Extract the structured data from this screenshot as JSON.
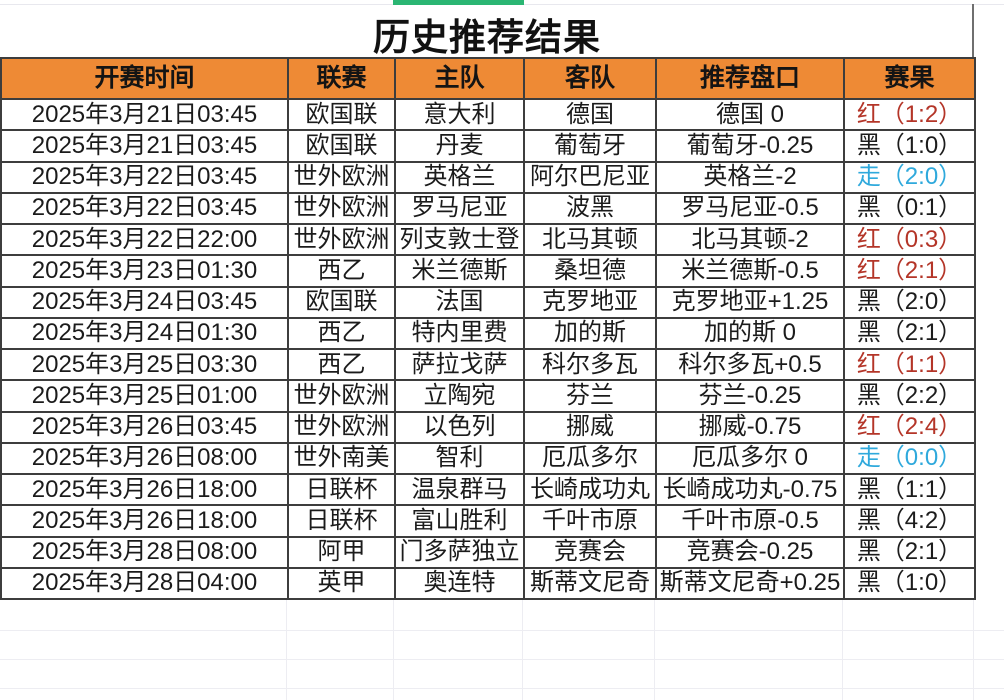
{
  "page": {
    "title": "历史推荐结果",
    "accent_bar_color": "#2bb673"
  },
  "table": {
    "header_bg": "#ee8a35",
    "result_colors": {
      "red": "#b43528",
      "black": "#1c1c1c",
      "draw": "#2fa9dc"
    },
    "columns": [
      {
        "key": "time",
        "label": "开赛时间"
      },
      {
        "key": "league",
        "label": "联赛"
      },
      {
        "key": "home",
        "label": "主队"
      },
      {
        "key": "away",
        "label": "客队"
      },
      {
        "key": "handicap",
        "label": "推荐盘口"
      },
      {
        "key": "result",
        "label": "赛果"
      }
    ],
    "rows": [
      {
        "time": "2025年3月21日03:45",
        "league": "欧国联",
        "home": "意大利",
        "away": "德国",
        "handicap": "德国 0",
        "result": "红（1:2）",
        "result_type": "red"
      },
      {
        "time": "2025年3月21日03:45",
        "league": "欧国联",
        "home": "丹麦",
        "away": "葡萄牙",
        "handicap": "葡萄牙-0.25",
        "result": "黑（1:0）",
        "result_type": "black"
      },
      {
        "time": "2025年3月22日03:45",
        "league": "世外欧洲",
        "home": "英格兰",
        "away": "阿尔巴尼亚",
        "handicap": "英格兰-2",
        "result": "走（2:0）",
        "result_type": "draw"
      },
      {
        "time": "2025年3月22日03:45",
        "league": "世外欧洲",
        "home": "罗马尼亚",
        "away": "波黑",
        "handicap": "罗马尼亚-0.5",
        "result": "黑（0:1）",
        "result_type": "black"
      },
      {
        "time": "2025年3月22日22:00",
        "league": "世外欧洲",
        "home": "列支敦士登",
        "away": "北马其顿",
        "handicap": "北马其顿-2",
        "result": "红（0:3）",
        "result_type": "red"
      },
      {
        "time": "2025年3月23日01:30",
        "league": "西乙",
        "home": "米兰德斯",
        "away": "桑坦德",
        "handicap": "米兰德斯-0.5",
        "result": "红（2:1）",
        "result_type": "red"
      },
      {
        "time": "2025年3月24日03:45",
        "league": "欧国联",
        "home": "法国",
        "away": "克罗地亚",
        "handicap": "克罗地亚+1.25",
        "result": "黑（2:0）",
        "result_type": "black"
      },
      {
        "time": "2025年3月24日01:30",
        "league": "西乙",
        "home": "特内里费",
        "away": "加的斯",
        "handicap": "加的斯 0",
        "result": "黑（2:1）",
        "result_type": "black"
      },
      {
        "time": "2025年3月25日03:30",
        "league": "西乙",
        "home": "萨拉戈萨",
        "away": "科尔多瓦",
        "handicap": "科尔多瓦+0.5",
        "result": "红（1:1）",
        "result_type": "red"
      },
      {
        "time": "2025年3月25日01:00",
        "league": "世外欧洲",
        "home": "立陶宛",
        "away": "芬兰",
        "handicap": "芬兰-0.25",
        "result": "黑（2:2）",
        "result_type": "black"
      },
      {
        "time": "2025年3月26日03:45",
        "league": "世外欧洲",
        "home": "以色列",
        "away": "挪威",
        "handicap": "挪威-0.75",
        "result": "红（2:4）",
        "result_type": "red"
      },
      {
        "time": "2025年3月26日08:00",
        "league": "世外南美",
        "home": "智利",
        "away": "厄瓜多尔",
        "handicap": "厄瓜多尔 0",
        "result": "走（0:0）",
        "result_type": "draw"
      },
      {
        "time": "2025年3月26日18:00",
        "league": "日联杯",
        "home": "温泉群马",
        "away": "长崎成功丸",
        "handicap": "长崎成功丸-0.75",
        "result": "黑（1:1）",
        "result_type": "black"
      },
      {
        "time": "2025年3月26日18:00",
        "league": "日联杯",
        "home": "富山胜利",
        "away": "千叶市原",
        "handicap": "千叶市原-0.5",
        "result": "黑（4:2）",
        "result_type": "black"
      },
      {
        "time": "2025年3月28日08:00",
        "league": "阿甲",
        "home": "门多萨独立",
        "away": "竞赛会",
        "handicap": "竞赛会-0.25",
        "result": "黑（2:1）",
        "result_type": "black"
      },
      {
        "time": "2025年3月28日04:00",
        "league": "英甲",
        "home": "奥连特",
        "away": "斯蒂文尼奇",
        "handicap": "斯蒂文尼奇+0.25",
        "result": "黑（1:0）",
        "result_type": "black"
      }
    ]
  }
}
